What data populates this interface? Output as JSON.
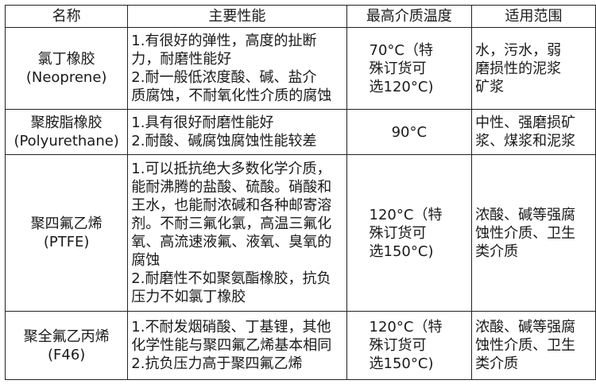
{
  "headers": [
    "名称",
    "主要性能",
    "最高介质温度",
    "适用范围"
  ],
  "rows": [
    {
      "name": "氯丁橡胶\n(Neoprene)",
      "performance": "1.有很好的弹性，高度的扯断\n力，耐磨性能好\n2.耐一般低浓度酸、碱、盐介\n质腐蚀，不耐氧化性介质的腐蚀",
      "max_temp": "70°C（特\n殊订货可\n选120°C)",
      "scope": "水，污水，弱\n磨损性的泥浆\n矿浆"
    },
    {
      "name": "聚胺脂橡胶\n(Polyurethane)",
      "performance": "1.具有很好耐磨性能好\n2.耐酸、碱腐蚀腐蚀性能较差",
      "max_temp": "90°C",
      "scope": "中性、强磨损矿\n浆、煤浆和泥浆"
    },
    {
      "name": "聚四氟乙烯\n(PTFE)",
      "performance": "1.可以抵抗绝大多数化学介质，\n能耐沸腾的盐酸、硫酸。硝酸和\n王水，也能耐浓碱和各种邮寄溶\n剂。不耐三氟化氯，高温三氟化\n氧、高流速液氟、液氧、臭氧的\n腐蚀\n2.耐磨性不如聚氨酯橡胶，抗负\n压力不如氯丁橡胶",
      "max_temp": "120°C（特\n殊订货可\n选150°C)",
      "scope": "浓酸、碱等强腐\n蚀性介质、卫生\n类介质"
    },
    {
      "name": "聚全氟乙丙烯\n(F46)",
      "performance": "1.不耐发烟硝酸、丁基锂，其他\n化学性能与聚四氟乙烯基本相同\n2.抗负压力高于聚四氟乙烯",
      "max_temp": "120°C（特\n殊订货可\n选150°C)",
      "scope": "浓酸、碱等强腐\n蚀性介质、卫生\n类介质"
    }
  ]
}
